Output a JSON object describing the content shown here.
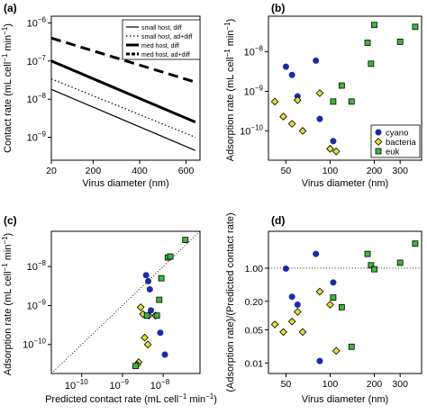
{
  "chart_data": [
    {
      "panel": "(a)",
      "type": "line",
      "title": "",
      "xlabel": "Virus diameter (nm)",
      "ylabel": "Contact rate (mL cell",
      "ylabel_exp": "−1",
      "ylabel_mid": " min",
      "ylabel_end": ")",
      "xscale": "log",
      "yscale": "log",
      "xlim": [
        20,
        660
      ],
      "ylim": [
        2.5e-10,
        1.5e-06
      ],
      "xticks": [
        20,
        50,
        100,
        200,
        400,
        600
      ],
      "xtick_labels": [
        "20",
        "",
        "",
        "200",
        "400",
        "600"
      ],
      "x_tick_labels_linear": [
        20,
        200,
        400,
        600
      ],
      "yticks": [
        1e-09,
        1e-08,
        1e-07,
        1e-06
      ],
      "ytick_labels": [
        [
          "10",
          "−9"
        ],
        [
          "10",
          "−8"
        ],
        [
          "10",
          "−7"
        ],
        [
          "10",
          "−6"
        ]
      ],
      "legend_position": "top-right",
      "series": [
        {
          "name": "small host, diff",
          "style": "solid-thin",
          "x": [
            20,
            640
          ],
          "y": [
            1.8e-08,
            4.5e-10
          ]
        },
        {
          "name": "small host, ad+diff",
          "style": "dotted-thin",
          "x": [
            20,
            640
          ],
          "y": [
            3.4e-08,
            1e-09
          ]
        },
        {
          "name": "med host, diff",
          "style": "solid-thick",
          "x": [
            20,
            640
          ],
          "y": [
            1e-07,
            2.5e-09
          ]
        },
        {
          "name": "med host, ad+diff",
          "style": "dashed-thick",
          "x": [
            20,
            640
          ],
          "y": [
            4e-07,
            2.8e-08
          ]
        }
      ]
    },
    {
      "panel": "(b)",
      "type": "scatter",
      "xlabel": "Virus diameter (nm)",
      "ylabel": "Adsorption rate (mL cell",
      "ylabel_exp": "−1",
      "ylabel_mid": " min",
      "ylabel_end": ")",
      "xscale": "log",
      "yscale": "log",
      "xlim": [
        38,
        420
      ],
      "ylim": [
        1.8e-11,
        8e-08
      ],
      "xticks": [
        50,
        100,
        200,
        300
      ],
      "yticks": [
        1e-10,
        1e-09,
        1e-08
      ],
      "ytick_labels": [
        [
          "10",
          "−10"
        ],
        [
          "10",
          "−9"
        ],
        [
          "10",
          "−8"
        ]
      ],
      "legend_position": "bottom-right",
      "series": [
        {
          "name": "cyano",
          "color": "#1a2ba8",
          "marker": "circle",
          "x": [
            50,
            55,
            60,
            80,
            85,
            105
          ],
          "y": [
            4.2e-09,
            2.6e-09,
            7.5e-10,
            6e-09,
            2e-10,
            5.5e-11
          ]
        },
        {
          "name": "bacteria",
          "color": "#e6dc3c",
          "marker": "diamond",
          "x": [
            42,
            48,
            55,
            60,
            65,
            85,
            100,
            110
          ],
          "y": [
            5.5e-10,
            2.3e-10,
            1.5e-10,
            6e-10,
            1e-10,
            9e-10,
            3.5e-11,
            3e-11
          ]
        },
        {
          "name": "euk",
          "color": "#3cb63c",
          "marker": "square",
          "x": [
            105,
            120,
            140,
            180,
            190,
            200,
            300,
            380
          ],
          "y": [
            5.5e-10,
            1.4e-09,
            5.5e-10,
            1.7e-08,
            5e-09,
            4.8e-08,
            1.8e-08,
            4.3e-08
          ]
        }
      ]
    },
    {
      "panel": "(c)",
      "type": "scatter",
      "xlabel": "Predicted contact rate (mL cell",
      "xlabel_exp": "−1",
      "xlabel_mid": " min",
      "xlabel_end": ")",
      "ylabel": "Adsorption rate (mL cell",
      "ylabel_exp": "−1",
      "ylabel_mid": " min",
      "ylabel_end": ")",
      "xscale": "log",
      "yscale": "log",
      "xlim": [
        1.8e-11,
        8e-08
      ],
      "ylim": [
        1.8e-11,
        8e-08
      ],
      "xticks": [
        1e-10,
        1e-09,
        1e-08
      ],
      "yticks": [
        1e-10,
        1e-09,
        1e-08
      ],
      "tick_labels": [
        [
          "10",
          "−10"
        ],
        [
          "10",
          "−9"
        ],
        [
          "10",
          "−8"
        ]
      ],
      "reference_line": "1:1 dotted",
      "series": [
        {
          "name": "cyano",
          "color": "#1a2ba8",
          "marker": "circle",
          "x": [
            3.8e-09,
            4.3e-09,
            4.7e-09,
            5e-09,
            8.5e-09,
            1.1e-08
          ],
          "y": [
            6e-09,
            4.2e-09,
            2.6e-09,
            7.5e-10,
            2e-10,
            5.5e-11
          ]
        },
        {
          "name": "bacteria",
          "color": "#e6dc3c",
          "marker": "diamond",
          "x": [
            2.8e-09,
            3.2e-09,
            3.5e-09,
            4.2e-09,
            4.4e-09,
            6.5e-09,
            2.5e-09,
            2.3e-09
          ],
          "y": [
            9e-10,
            6e-10,
            1.5e-10,
            1e-10,
            5.5e-10,
            5.5e-10,
            3.5e-11,
            3e-11
          ]
        },
        {
          "name": "euk",
          "color": "#3cb63c",
          "marker": "square",
          "x": [
            7e-09,
            8e-09,
            9e-09,
            1.3e-08,
            1.5e-08,
            3.5e-08,
            4e-09,
            2.1e-09
          ],
          "y": [
            5.5e-10,
            1.4e-09,
            5e-09,
            1.7e-08,
            1.8e-08,
            4.8e-08,
            5.5e-10,
            2.8e-11
          ]
        }
      ]
    },
    {
      "panel": "(d)",
      "type": "scatter",
      "xlabel": "Virus diameter (nm)",
      "ylabel": "(Adsorption rate)/(Predicted contact rate)",
      "xscale": "log",
      "yscale": "log",
      "xlim": [
        38,
        420
      ],
      "ylim": [
        0.006,
        6
      ],
      "xticks": [
        50,
        100,
        200,
        300
      ],
      "yticks": [
        0.01,
        0.05,
        0.2,
        1.0
      ],
      "ytick_labels": [
        "0.01",
        "0.05",
        "0.20",
        "1.00"
      ],
      "reference_line": "y = 1 dotted",
      "series": [
        {
          "name": "cyano",
          "color": "#1a2ba8",
          "marker": "circle",
          "x": [
            50,
            55,
            60,
            80,
            85,
            105
          ],
          "y": [
            0.98,
            0.25,
            0.17,
            2.0,
            0.011,
            0.5
          ]
        },
        {
          "name": "bacteria",
          "color": "#e6dc3c",
          "marker": "diamond",
          "x": [
            42,
            48,
            55,
            60,
            65,
            85,
            100,
            110
          ],
          "y": [
            0.065,
            0.045,
            0.075,
            0.12,
            0.045,
            0.32,
            0.17,
            0.018
          ]
        },
        {
          "name": "euk",
          "color": "#3cb63c",
          "marker": "square",
          "x": [
            105,
            120,
            140,
            180,
            190,
            200,
            300,
            380
          ],
          "y": [
            0.24,
            0.15,
            0.022,
            2.0,
            1.15,
            0.95,
            1.3,
            3.3
          ]
        }
      ]
    }
  ]
}
